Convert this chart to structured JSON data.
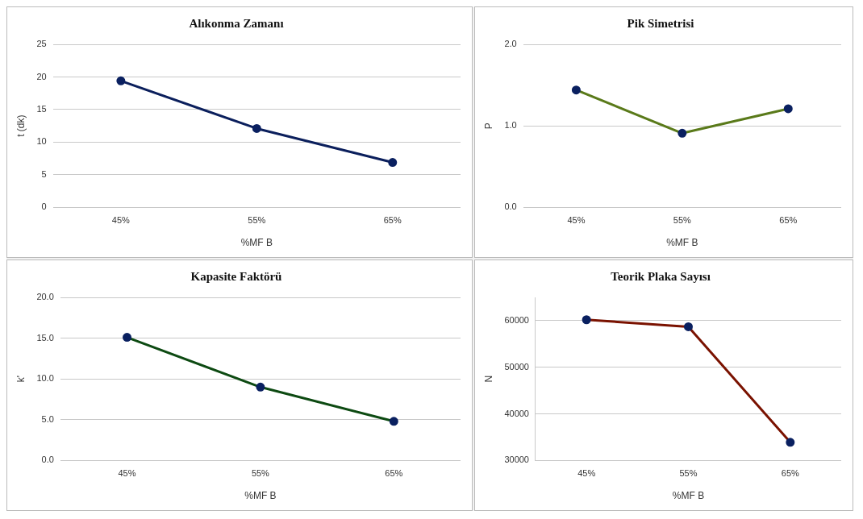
{
  "chart_data": [
    {
      "type": "line",
      "title": "Alıkonma Zamanı",
      "xlabel": "%MF B",
      "ylabel": "t (dk)",
      "categories": [
        "45%",
        "55%",
        "65%"
      ],
      "series": [
        {
          "color": "#0b1f5c",
          "values": [
            19.4,
            12.1,
            6.9
          ]
        }
      ],
      "ylim": [
        0,
        25
      ],
      "yticks": [
        0,
        5,
        10,
        15,
        20,
        25
      ],
      "grid": "y",
      "marker": "circle"
    },
    {
      "type": "line",
      "title": "Pik Simetrisi",
      "xlabel": "%MF B",
      "ylabel": "P",
      "categories": [
        "45%",
        "55%",
        "65%"
      ],
      "series": [
        {
          "color": "#5a7a1a",
          "values": [
            1.44,
            0.91,
            1.21
          ]
        }
      ],
      "ylim": [
        0,
        2
      ],
      "yticks": [
        {
          "value": 0,
          "label": "0.0"
        },
        {
          "value": 1,
          "label": "1.0"
        },
        {
          "value": 2,
          "label": "2.0"
        }
      ],
      "grid": "y",
      "marker": "circle"
    },
    {
      "type": "line",
      "title": "Kapasite Faktörü",
      "xlabel": "%MF B",
      "ylabel": "k'",
      "categories": [
        "45%",
        "55%",
        "65%"
      ],
      "series": [
        {
          "color": "#0d4a12",
          "values": [
            15.1,
            9.0,
            4.8
          ]
        }
      ],
      "ylim": [
        0,
        20
      ],
      "yticks": [
        {
          "value": 0,
          "label": "0.0"
        },
        {
          "value": 5,
          "label": "5.0"
        },
        {
          "value": 10,
          "label": "10.0"
        },
        {
          "value": 15,
          "label": "15.0"
        },
        {
          "value": 20,
          "label": "20.0"
        }
      ],
      "grid": "y",
      "marker": "circle"
    },
    {
      "type": "line",
      "title": "Teorik Plaka Sayısı",
      "xlabel": "%MF B",
      "ylabel": "N",
      "categories": [
        "45%",
        "55%",
        "65%"
      ],
      "series": [
        {
          "color": "#7a1200",
          "values": [
            60200,
            58700,
            33900
          ]
        }
      ],
      "ylim": [
        30000,
        65000
      ],
      "yticks": [
        30000,
        40000,
        50000,
        60000
      ],
      "grid": "y",
      "marker": "circle"
    }
  ]
}
